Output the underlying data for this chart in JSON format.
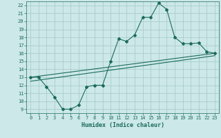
{
  "xlabel": "Humidex (Indice chaleur)",
  "bg_color": "#cce8e8",
  "grid_color": "#aacccc",
  "line_color": "#1a6b5a",
  "xlim": [
    -0.5,
    23.5
  ],
  "ylim": [
    8.5,
    22.5
  ],
  "xticks": [
    0,
    1,
    2,
    3,
    4,
    5,
    6,
    7,
    8,
    9,
    10,
    11,
    12,
    13,
    14,
    15,
    16,
    17,
    18,
    19,
    20,
    21,
    22,
    23
  ],
  "yticks": [
    9,
    10,
    11,
    12,
    13,
    14,
    15,
    16,
    17,
    18,
    19,
    20,
    21,
    22
  ],
  "line1_x": [
    0,
    1,
    2,
    3,
    4,
    5,
    6,
    7,
    8,
    9,
    10,
    11,
    12,
    13,
    14,
    15,
    16,
    17,
    18,
    19,
    20,
    21,
    22,
    23
  ],
  "line1_y": [
    13.0,
    13.0,
    11.8,
    10.5,
    9.0,
    9.0,
    9.5,
    11.8,
    12.0,
    12.0,
    15.0,
    17.8,
    17.5,
    18.3,
    20.5,
    20.5,
    22.3,
    21.5,
    18.0,
    17.2,
    17.2,
    17.3,
    16.2,
    16.0
  ],
  "line2_x": [
    0,
    23
  ],
  "line2_y": [
    13.0,
    16.0
  ],
  "line3_x": [
    0,
    23
  ],
  "line3_y": [
    12.5,
    15.7
  ],
  "tick_fontsize": 5,
  "xlabel_fontsize": 6
}
